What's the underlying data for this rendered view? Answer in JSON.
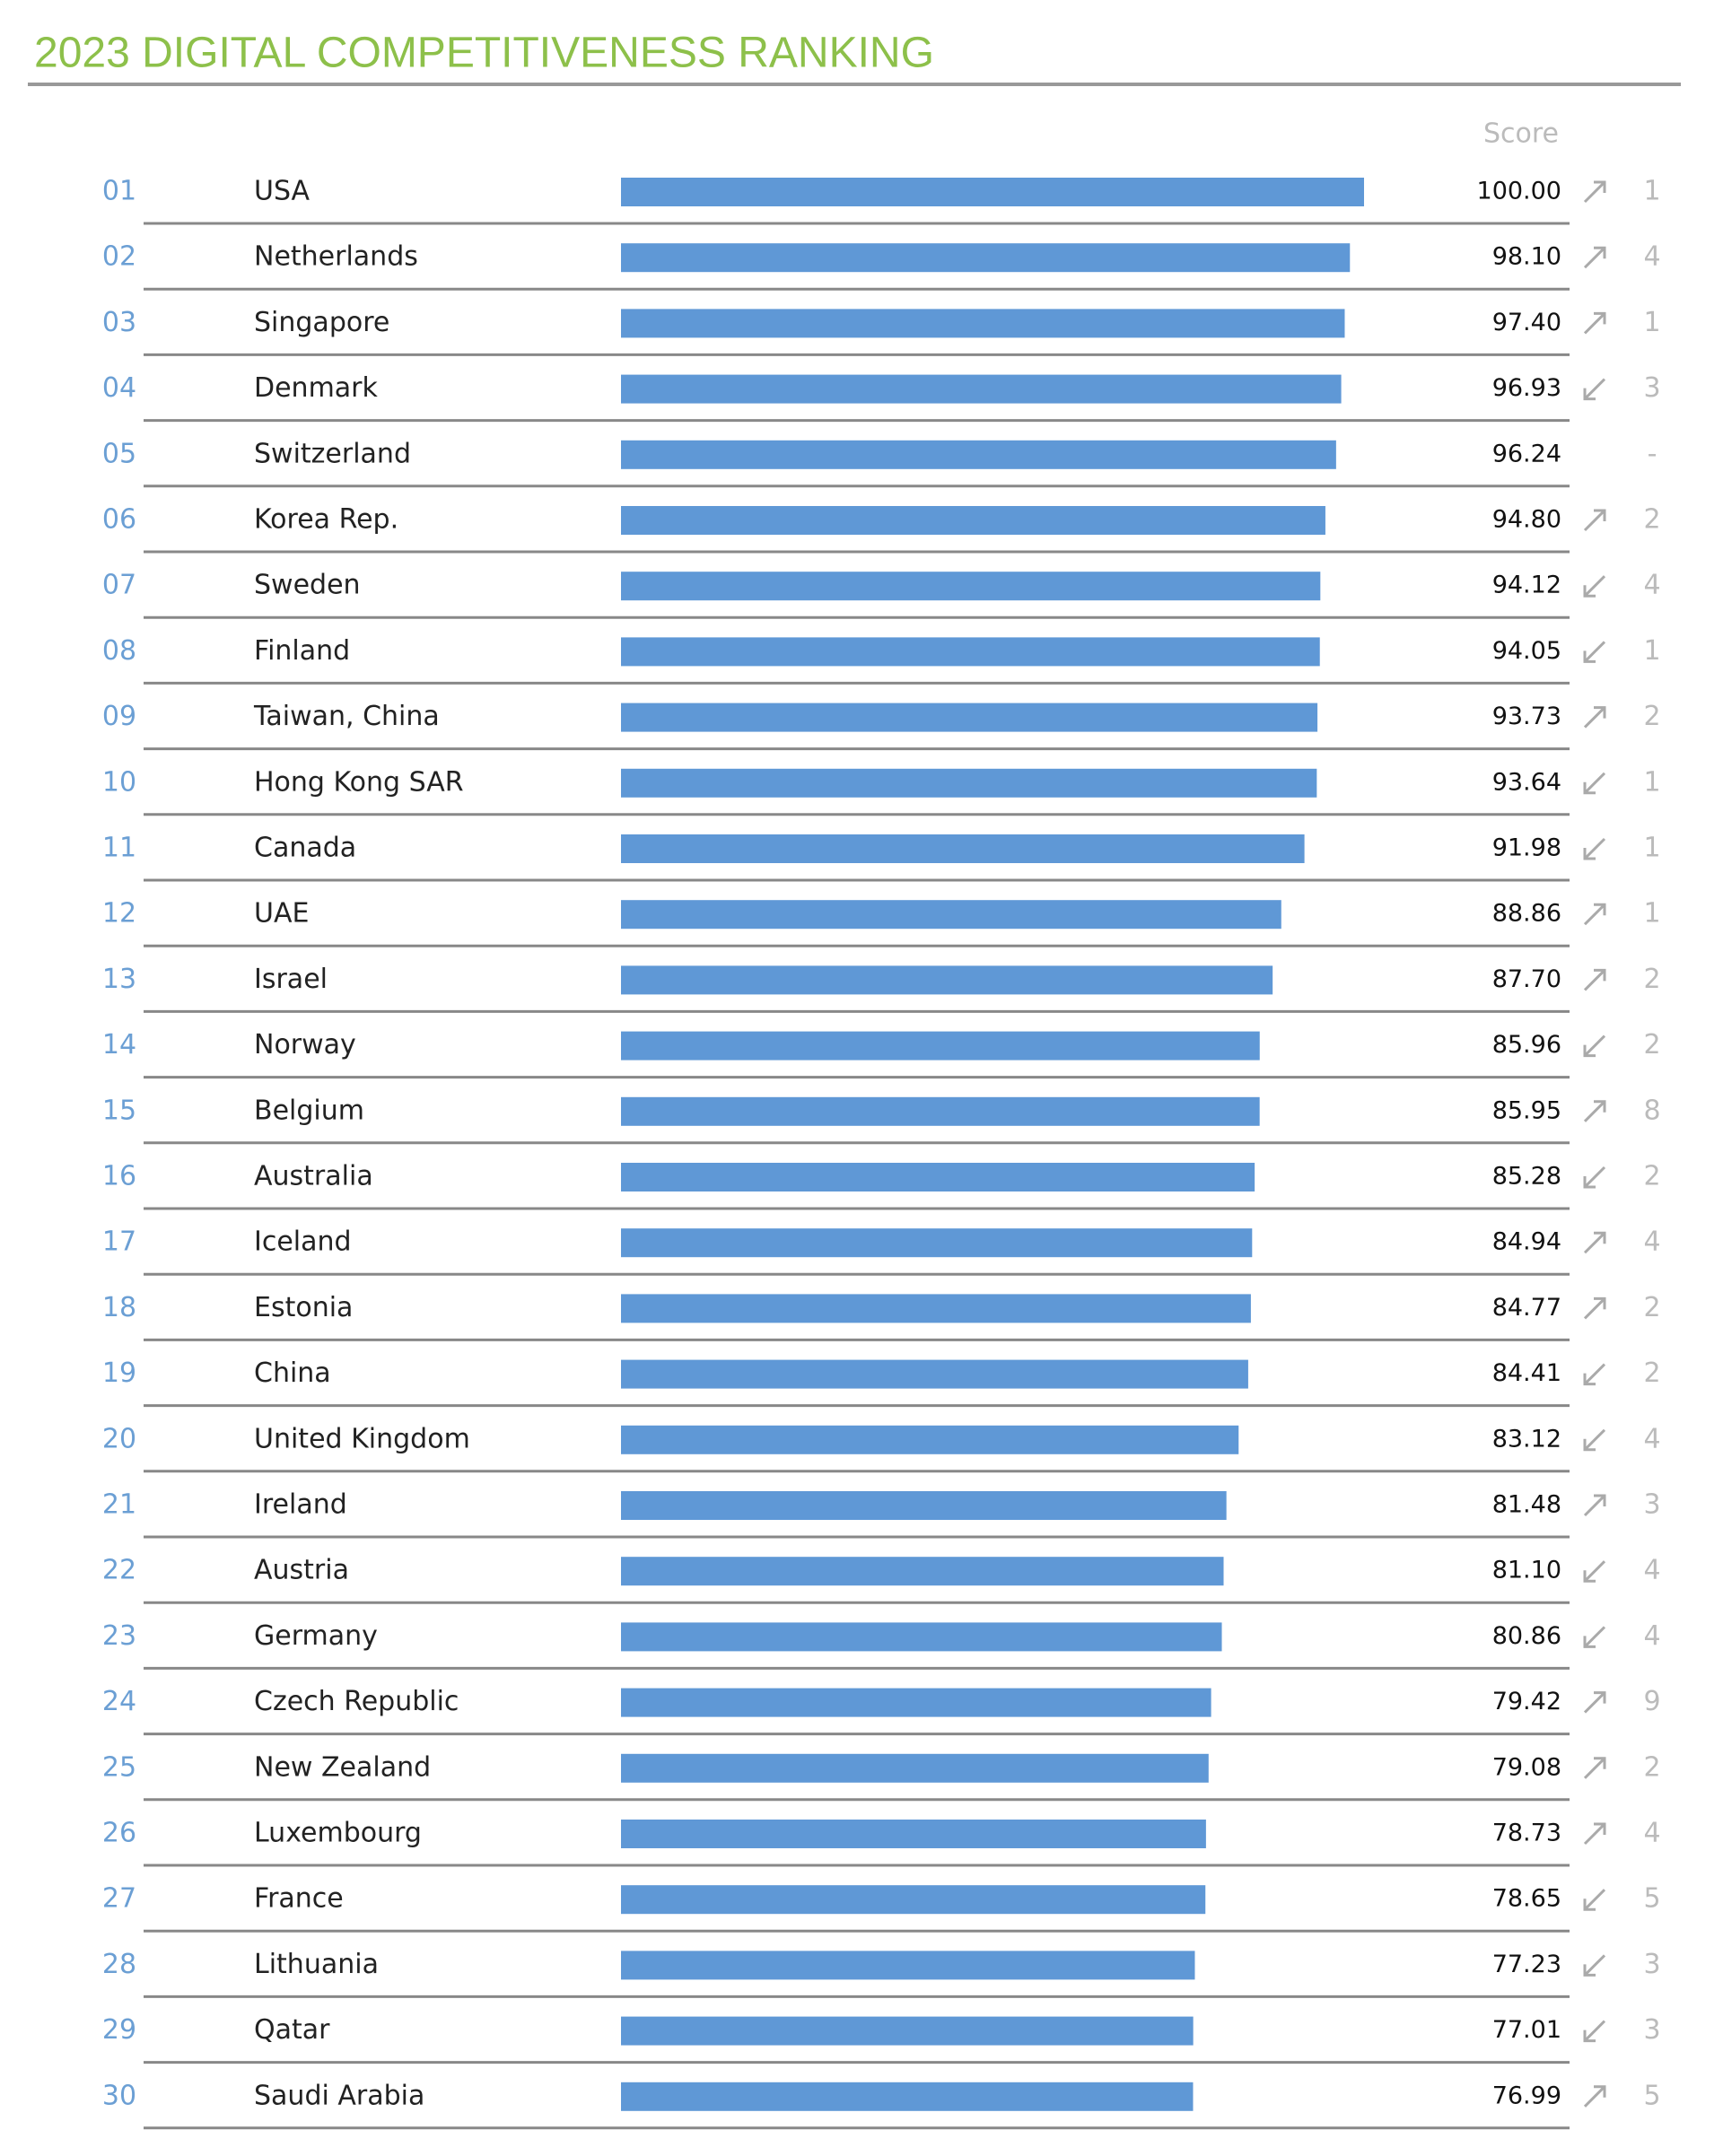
{
  "chart_data": {
    "type": "bar",
    "title": "2023 DIGITAL COMPETITIVENESS RANKING",
    "value_header": "Score",
    "ranks": [
      "01",
      "02",
      "03",
      "04",
      "05",
      "06",
      "07",
      "08",
      "09",
      "10",
      "11",
      "12",
      "13",
      "14",
      "15",
      "16",
      "17",
      "18",
      "19",
      "20",
      "21",
      "22",
      "23",
      "24",
      "25",
      "26",
      "27",
      "28",
      "29",
      "30"
    ],
    "categories": [
      "USA",
      "Netherlands",
      "Singapore",
      "Denmark",
      "Switzerland",
      "Korea Rep.",
      "Sweden",
      "Finland",
      "Taiwan, China",
      "Hong Kong SAR",
      "Canada",
      "UAE",
      "Israel",
      "Norway",
      "Belgium",
      "Australia",
      "Iceland",
      "Estonia",
      "China",
      "United Kingdom",
      "Ireland",
      "Austria",
      "Germany",
      "Czech Republic",
      "New Zealand",
      "Luxembourg",
      "France",
      "Lithuania",
      "Qatar",
      "Saudi Arabia"
    ],
    "values": [
      100,
      98.1,
      97.4,
      96.93,
      96.24,
      94.8,
      94.12,
      94.05,
      93.73,
      93.64,
      91.98,
      88.86,
      87.7,
      85.96,
      85.95,
      85.28,
      84.94,
      84.77,
      84.41,
      83.12,
      81.48,
      81.1,
      80.86,
      79.42,
      79.08,
      78.73,
      78.65,
      77.23,
      77.01,
      76.99
    ],
    "value_labels": [
      "100.00",
      "98.10",
      "97.40",
      "96.93",
      "96.24",
      "94.80",
      "94.12",
      "94.05",
      "93.73",
      "93.64",
      "91.98",
      "88.86",
      "87.70",
      "85.96",
      "85.95",
      "85.28",
      "84.94",
      "84.77",
      "84.41",
      "83.12",
      "81.48",
      "81.10",
      "80.86",
      "79.42",
      "79.08",
      "78.73",
      "78.65",
      "77.23",
      "77.01",
      "76.99"
    ],
    "changes": [
      {
        "direction": "up",
        "value": 1
      },
      {
        "direction": "up",
        "value": 4
      },
      {
        "direction": "up",
        "value": 1
      },
      {
        "direction": "down",
        "value": 3
      },
      {
        "label": "-"
      },
      {
        "direction": "up",
        "value": 2
      },
      {
        "direction": "down",
        "value": 4
      },
      {
        "direction": "down",
        "value": 1
      },
      {
        "direction": "up",
        "value": 2
      },
      {
        "direction": "down",
        "value": 1
      },
      {
        "direction": "down",
        "value": 1
      },
      {
        "direction": "up",
        "value": 1
      },
      {
        "direction": "up",
        "value": 2
      },
      {
        "direction": "down",
        "value": 2
      },
      {
        "direction": "up",
        "value": 8
      },
      {
        "direction": "down",
        "value": 2
      },
      {
        "direction": "up",
        "value": 4
      },
      {
        "direction": "up",
        "value": 2
      },
      {
        "direction": "down",
        "value": 2
      },
      {
        "direction": "down",
        "value": 4
      },
      {
        "direction": "up",
        "value": 3
      },
      {
        "direction": "down",
        "value": 4
      },
      {
        "direction": "down",
        "value": 4
      },
      {
        "direction": "up",
        "value": 9
      },
      {
        "direction": "up",
        "value": 2
      },
      {
        "direction": "up",
        "value": 4
      },
      {
        "direction": "down",
        "value": 5
      },
      {
        "direction": "down",
        "value": 3
      },
      {
        "direction": "down",
        "value": 3
      },
      {
        "direction": "up",
        "value": 5
      }
    ],
    "xlim": [
      0,
      100
    ],
    "color": "#5f98d6"
  }
}
